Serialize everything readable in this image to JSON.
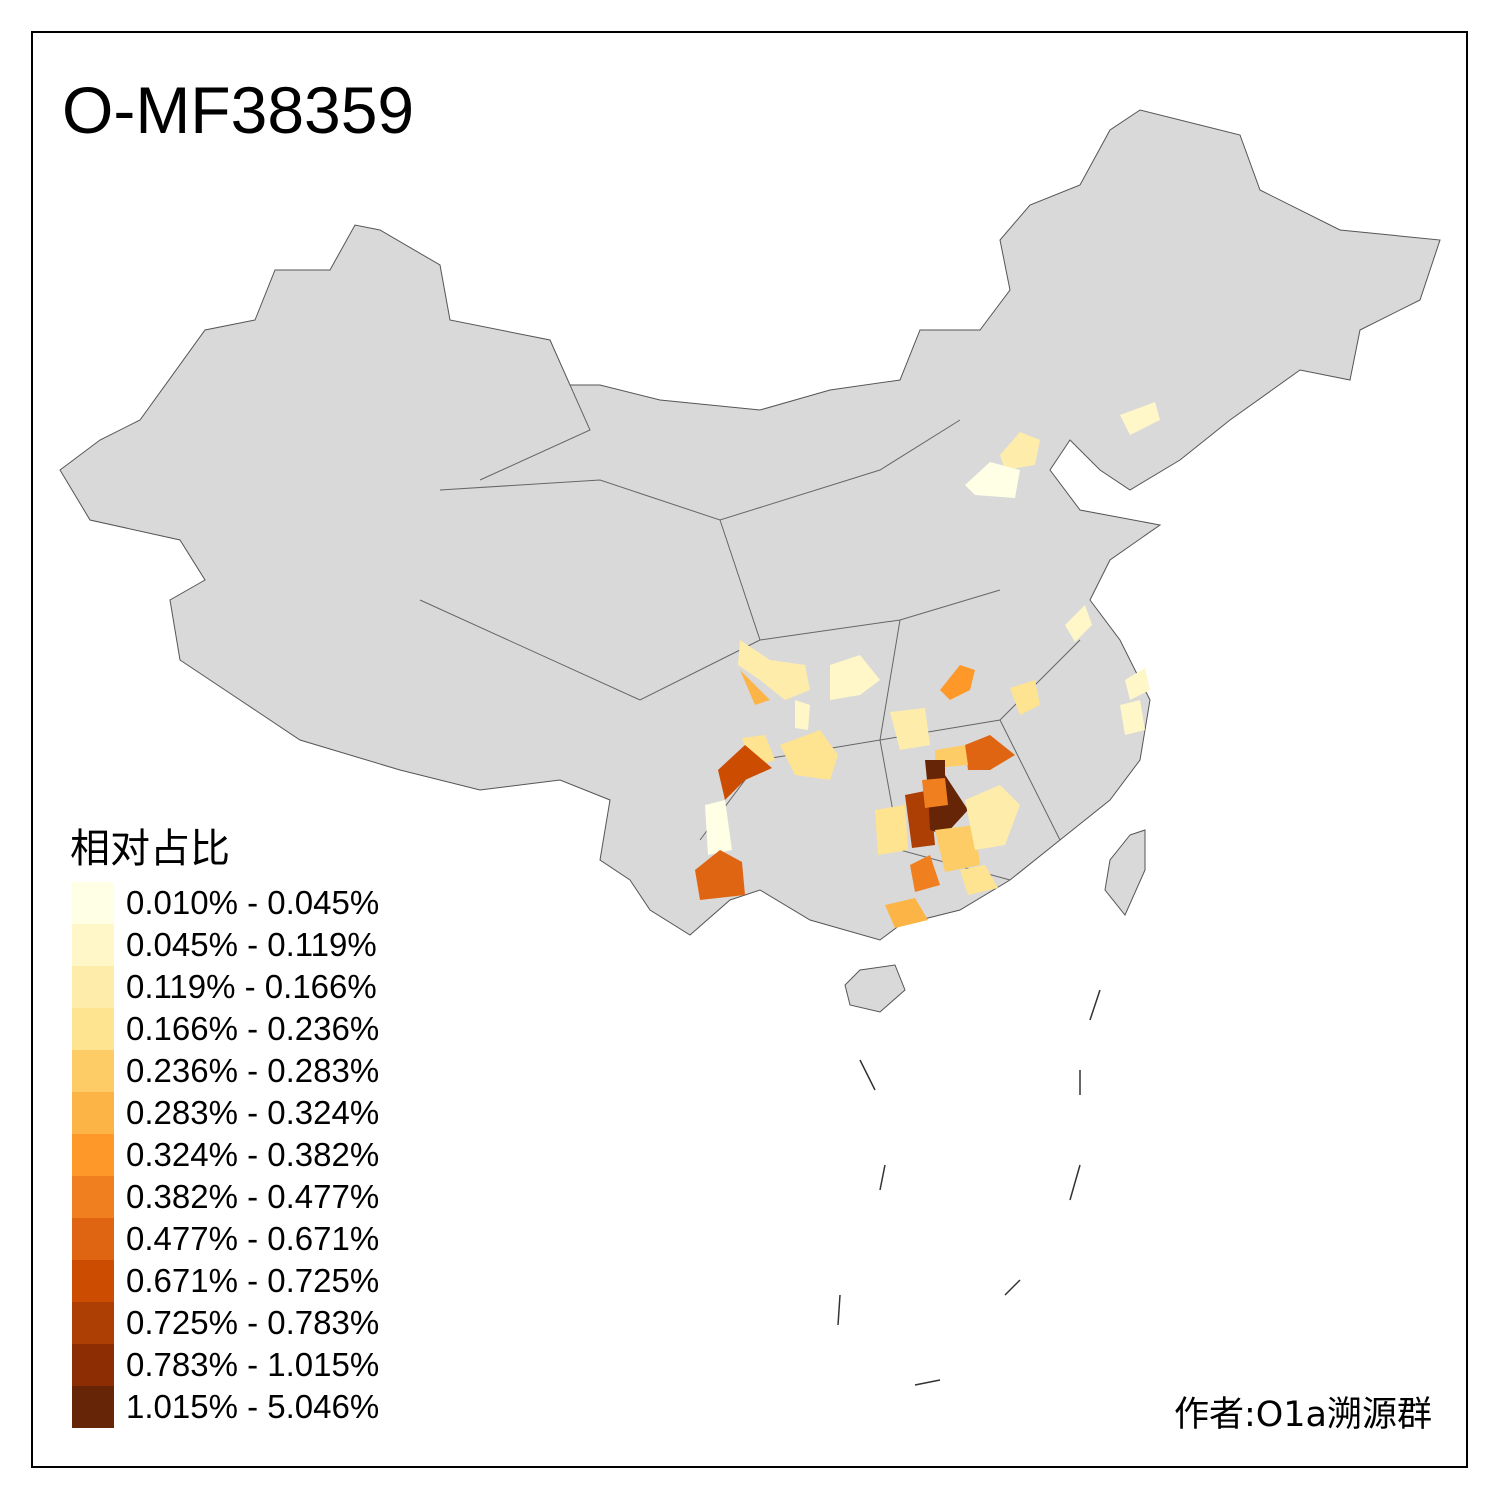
{
  "title": "O-MF38359",
  "legend": {
    "title": "相对占比",
    "bins": [
      {
        "label": "0.010% - 0.045%",
        "color": "#FFFFE5"
      },
      {
        "label": "0.045% - 0.119%",
        "color": "#FFF7C8"
      },
      {
        "label": "0.119% - 0.166%",
        "color": "#FEEDAA"
      },
      {
        "label": "0.166% - 0.236%",
        "color": "#FEE391"
      },
      {
        "label": "0.236% - 0.283%",
        "color": "#FECC66"
      },
      {
        "label": "0.283% - 0.324%",
        "color": "#FDB446"
      },
      {
        "label": "0.324% - 0.382%",
        "color": "#FE9929"
      },
      {
        "label": "0.382% - 0.477%",
        "color": "#F07F20"
      },
      {
        "label": "0.477% - 0.671%",
        "color": "#E06512"
      },
      {
        "label": "0.671% - 0.725%",
        "color": "#CC4C02"
      },
      {
        "label": "0.725% - 0.783%",
        "color": "#AD3E04"
      },
      {
        "label": "0.783% - 1.015%",
        "color": "#8C2D04"
      },
      {
        "label": "1.015% - 5.046%",
        "color": "#662506"
      }
    ]
  },
  "base_color": "#D9D9D9",
  "highlighted_region_levels": [
    1,
    2,
    0,
    1,
    1,
    1,
    2,
    1,
    3,
    6,
    2,
    5,
    0,
    3,
    3,
    9,
    1,
    8,
    8,
    4,
    3,
    10,
    12,
    7,
    4,
    7,
    5,
    2,
    3
  ],
  "credit": "作者:O1a溯源群"
}
